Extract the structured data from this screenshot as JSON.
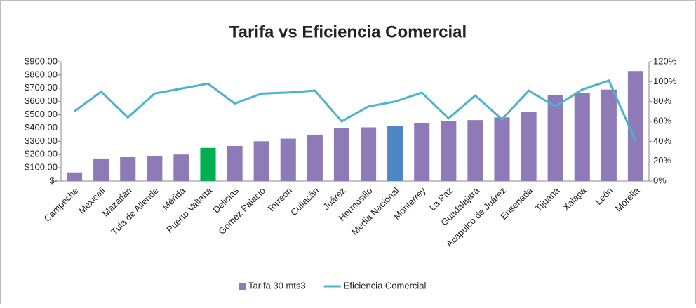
{
  "chart_data": {
    "type": "bar",
    "title": "Tarifa vs Eficiencia Comercial",
    "categories": [
      "Campeche",
      "Mexicali",
      "Mazatlán",
      "Tula de Allende",
      "Mérida",
      "Puerto Vallarta",
      "Delicias",
      "Gómez Palacio",
      "Torreón",
      "Culiacán",
      "Juárez",
      "Hermosillo",
      "Media Nacional",
      "Monterrey",
      "La Paz",
      "Guadalajara",
      "Acapulco de Juárez",
      "Ensenada",
      "Tijuana",
      "Xalapa",
      "León",
      "Morelia"
    ],
    "series": [
      {
        "name": "Tarifa 30 mts3",
        "type": "bar",
        "color": "#8f7ab8",
        "colors": [
          "#8f7ab8",
          "#8f7ab8",
          "#8f7ab8",
          "#8f7ab8",
          "#8f7ab8",
          "#00b050",
          "#8f7ab8",
          "#8f7ab8",
          "#8f7ab8",
          "#8f7ab8",
          "#8f7ab8",
          "#8f7ab8",
          "#4f86c6",
          "#8f7ab8",
          "#8f7ab8",
          "#8f7ab8",
          "#8f7ab8",
          "#8f7ab8",
          "#8f7ab8",
          "#8f7ab8",
          "#8f7ab8",
          "#8f7ab8"
        ],
        "values": [
          65,
          170,
          180,
          190,
          200,
          250,
          265,
          300,
          320,
          350,
          400,
          405,
          415,
          435,
          455,
          460,
          480,
          520,
          650,
          665,
          690,
          830
        ]
      },
      {
        "name": "Eficiencia Comercial",
        "type": "line",
        "axis": "y2",
        "color": "#4bb3cc",
        "values": [
          70,
          90,
          64,
          88,
          93,
          98,
          78,
          88,
          89,
          91,
          60,
          75,
          80,
          89,
          63,
          86,
          62,
          91,
          75,
          92,
          101,
          40
        ]
      }
    ],
    "ylim": [
      0,
      900
    ],
    "yticks": [
      {
        "value": 0,
        "label": "$-"
      },
      {
        "value": 100,
        "label": "$100.00"
      },
      {
        "value": 200,
        "label": "$200.00"
      },
      {
        "value": 300,
        "label": "$300.00"
      },
      {
        "value": 400,
        "label": "$400.00"
      },
      {
        "value": 500,
        "label": "$500.00"
      },
      {
        "value": 600,
        "label": "$600.00"
      },
      {
        "value": 700,
        "label": "$700.00"
      },
      {
        "value": 800,
        "label": "$800.00"
      },
      {
        "value": 900,
        "label": "$900.00"
      }
    ],
    "y2lim": [
      0,
      120
    ],
    "y2ticks": [
      {
        "value": 0,
        "label": "0%"
      },
      {
        "value": 20,
        "label": "20%"
      },
      {
        "value": 40,
        "label": "40%"
      },
      {
        "value": 60,
        "label": "60%"
      },
      {
        "value": 80,
        "label": "80%"
      },
      {
        "value": 100,
        "label": "100%"
      },
      {
        "value": 120,
        "label": "120%"
      }
    ],
    "legend": "bottom"
  }
}
